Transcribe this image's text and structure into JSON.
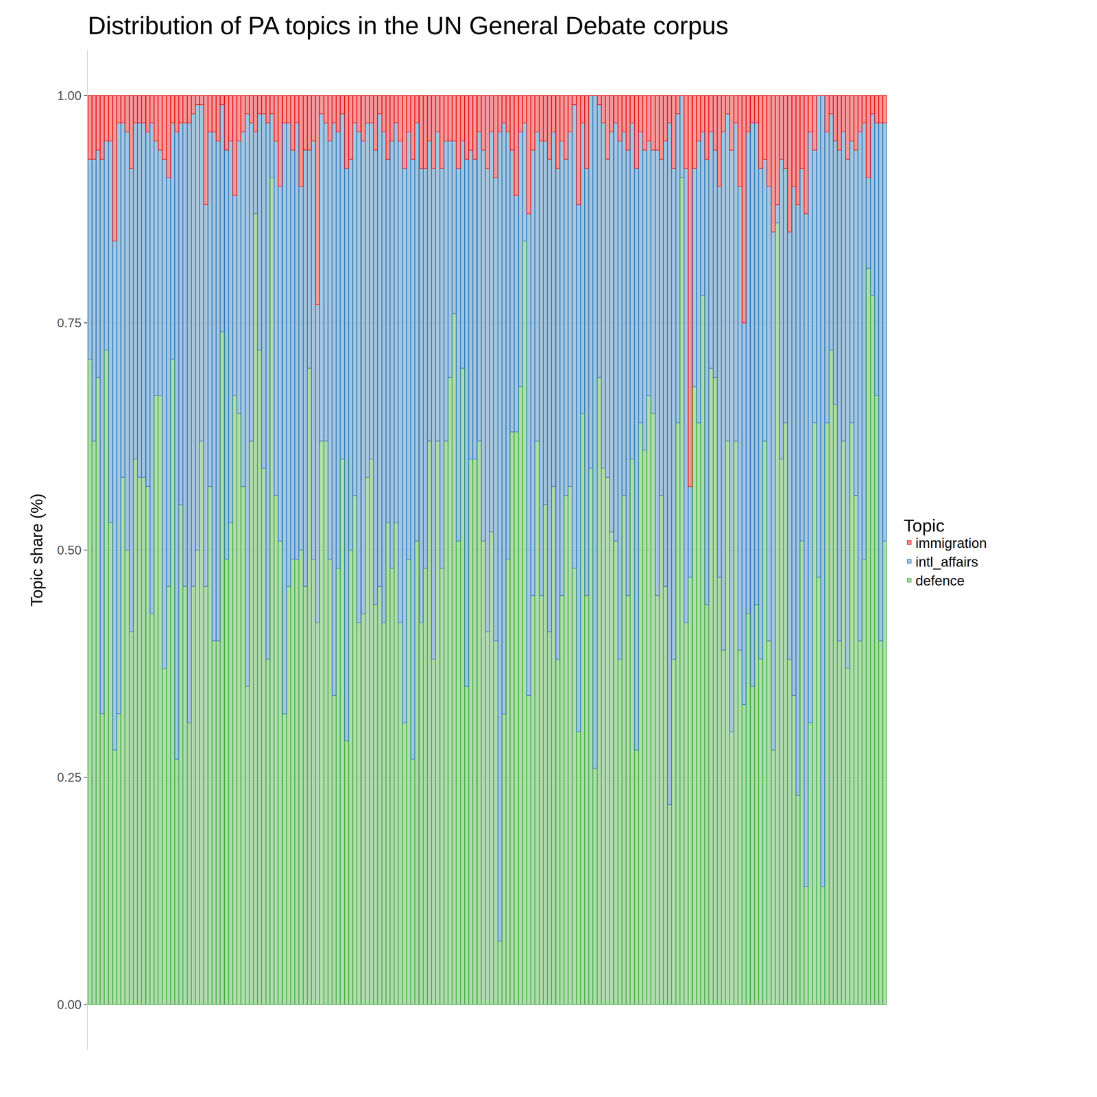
{
  "chart_data": {
    "type": "bar",
    "title": "Distribution of PA topics in the UN General Debate corpus",
    "y_label": "Topic share (%)",
    "legend_title": "Topic",
    "stacked": true,
    "grid": true,
    "tick_labels": "y",
    "legend": "right",
    "ylim": [
      -0.05,
      1.05
    ],
    "yticks": [
      {
        "value": 0,
        "label": "0.00"
      },
      {
        "value": 0.25,
        "label": "0.25"
      },
      {
        "value": 0.5,
        "label": "0.50"
      },
      {
        "value": 0.75,
        "label": "0.75"
      },
      {
        "value": 1,
        "label": "1.00"
      }
    ],
    "categories": [
      null,
      null,
      null,
      null,
      null,
      null,
      null,
      null,
      null,
      null,
      null,
      null,
      null,
      null,
      null,
      null,
      null,
      null,
      null,
      null,
      null,
      null,
      null,
      null,
      null,
      null,
      null,
      null,
      null,
      null,
      null,
      null,
      null,
      null,
      null,
      null,
      null,
      null,
      null,
      null,
      null,
      null,
      null,
      null,
      null,
      null,
      null,
      null,
      null,
      null,
      null,
      null,
      null,
      null,
      null,
      null,
      null,
      null,
      null,
      null,
      null,
      null,
      null,
      null,
      null,
      null,
      null,
      null,
      null,
      null,
      null,
      null,
      null,
      null,
      null,
      null,
      null,
      null,
      null,
      null,
      null,
      null,
      null,
      null,
      null,
      null,
      null,
      null,
      null,
      null,
      null,
      null,
      null,
      null,
      null,
      null,
      null,
      null,
      null,
      null,
      null,
      null,
      null,
      null,
      null,
      null,
      null,
      null,
      null,
      null,
      null,
      null,
      null,
      null,
      null,
      null,
      null,
      null,
      null,
      null,
      null,
      null,
      null,
      null,
      null,
      null,
      null,
      null,
      null,
      null,
      null,
      null,
      null,
      null,
      null,
      null,
      null,
      null,
      null,
      null,
      null,
      null,
      null,
      null,
      null,
      null,
      null,
      null,
      null,
      null,
      null,
      null,
      null,
      null,
      null,
      null,
      null,
      null,
      null,
      null,
      null,
      null,
      null,
      null,
      null,
      null,
      null,
      null,
      null,
      null,
      null,
      null,
      null,
      null,
      null,
      null,
      null,
      null,
      null,
      null,
      null,
      null,
      null,
      null,
      null,
      null,
      null,
      null,
      null,
      null,
      null,
      null,
      null
    ],
    "series": [
      {
        "name": "immigration",
        "color": "#e41a1c",
        "values": [
          0.07,
          0.07,
          0.06,
          0.07,
          0.05,
          0.05,
          0.16,
          0.03,
          0.03,
          0.04,
          0.08,
          0.03,
          0.03,
          0.03,
          0.04,
          0.03,
          0.05,
          0.06,
          0.07,
          0.09,
          0.03,
          0.04,
          0.03,
          0.03,
          0.03,
          0.02,
          0.01,
          0.01,
          0.12,
          0.04,
          0.04,
          0.05,
          0.01,
          0.06,
          0.05,
          0.11,
          0.05,
          0.04,
          0.02,
          0.03,
          0.04,
          0.02,
          0.02,
          0.03,
          0.02,
          0.05,
          0.1,
          0.03,
          0.03,
          0.06,
          0.03,
          0.1,
          0.06,
          0.06,
          0.05,
          0.23,
          0.02,
          0.03,
          0.05,
          0.03,
          0.04,
          0.02,
          0.08,
          0.07,
          0.03,
          0.04,
          0.05,
          0.03,
          0.03,
          0.06,
          0.02,
          0.04,
          0.07,
          0.05,
          0.03,
          0.05,
          0.08,
          0.04,
          0.07,
          0.03,
          0.08,
          0.08,
          0.05,
          0.08,
          0.04,
          0.08,
          0.05,
          0.05,
          0.05,
          0.08,
          0.05,
          0.07,
          0.06,
          0.07,
          0.04,
          0.06,
          0.08,
          0.04,
          0.09,
          0.04,
          0.03,
          0.04,
          0.06,
          0.11,
          0.04,
          0.03,
          0.13,
          0.06,
          0.04,
          0.05,
          0.05,
          0.07,
          0.04,
          0.08,
          0.05,
          0.07,
          0.04,
          0.01,
          0.12,
          0.03,
          0.08,
          0,
          0,
          0.01,
          0.03,
          0.07,
          0.04,
          0.03,
          0.05,
          0.04,
          0.06,
          0.03,
          0.08,
          0.04,
          0.06,
          0.05,
          0.06,
          0.06,
          0.07,
          0.05,
          0.03,
          0.08,
          0.02,
          0,
          0.08,
          0.43,
          0.08,
          0.05,
          0.04,
          0.07,
          0.04,
          0.06,
          0.1,
          0.04,
          0.02,
          0.06,
          0.03,
          0.1,
          0.25,
          0.04,
          0.03,
          0.03,
          0.08,
          0.07,
          0.1,
          0.15,
          0.12,
          0.07,
          0.08,
          0.15,
          0.1,
          0.12,
          0.08,
          0.13,
          0.04,
          0.06,
          0,
          0,
          0.04,
          0.02,
          0.05,
          0.06,
          0.04,
          0.07,
          0.05,
          0.06,
          0.04,
          0.03,
          0.09,
          0.02,
          0.03,
          0.03,
          0.03
        ]
      },
      {
        "name": "intl_affairs",
        "color": "#377eb8",
        "values": [
          0.22,
          0.31,
          0.25,
          0.61,
          0.23,
          0.42,
          0.56,
          0.65,
          0.39,
          0.46,
          0.51,
          0.37,
          0.39,
          0.39,
          0.39,
          0.54,
          0.28,
          0.27,
          0.56,
          0.45,
          0.26,
          0.69,
          0.42,
          0.51,
          0.66,
          0.52,
          0.49,
          0.37,
          0.42,
          0.39,
          0.56,
          0.55,
          0.25,
          0.45,
          0.42,
          0.22,
          0.3,
          0.39,
          0.63,
          0.35,
          0.09,
          0.26,
          0.39,
          0.59,
          0.07,
          0.39,
          0.39,
          0.65,
          0.51,
          0.45,
          0.48,
          0.4,
          0.48,
          0.24,
          0.46,
          0.35,
          0.36,
          0.35,
          0.46,
          0.63,
          0.48,
          0.38,
          0.63,
          0.43,
          0.41,
          0.54,
          0.52,
          0.39,
          0.37,
          0.5,
          0.52,
          0.54,
          0.4,
          0.47,
          0.44,
          0.53,
          0.61,
          0.47,
          0.66,
          0.46,
          0.5,
          0.44,
          0.33,
          0.54,
          0.34,
          0.44,
          0.33,
          0.26,
          0.19,
          0.41,
          0.25,
          0.58,
          0.34,
          0.33,
          0.34,
          0.43,
          0.51,
          0.44,
          0.51,
          0.89,
          0.65,
          0.47,
          0.31,
          0.26,
          0.28,
          0.13,
          0.53,
          0.49,
          0.34,
          0.5,
          0.4,
          0.52,
          0.39,
          0.54,
          0.5,
          0.37,
          0.39,
          0.51,
          0.58,
          0.32,
          0.47,
          0.41,
          0.74,
          0.3,
          0.38,
          0.35,
          0.44,
          0.46,
          0.57,
          0.4,
          0.49,
          0.37,
          0.64,
          0.32,
          0.33,
          0.28,
          0.29,
          0.49,
          0.37,
          0.49,
          0.75,
          0.54,
          0.34,
          0.09,
          0.5,
          0.1,
          0.24,
          0.31,
          0.18,
          0.49,
          0.26,
          0.25,
          0.43,
          0.57,
          0.36,
          0.64,
          0.35,
          0.51,
          0.42,
          0.53,
          0.62,
          0.53,
          0.54,
          0.31,
          0.5,
          0.57,
          0.02,
          0.33,
          0.28,
          0.47,
          0.56,
          0.65,
          0.41,
          0.74,
          0.65,
          0.3,
          0.53,
          0.87,
          0.32,
          0.26,
          0.29,
          0.54,
          0.34,
          0.56,
          0.31,
          0.38,
          0.56,
          0.48,
          0.1,
          0.2,
          0.3,
          0.57,
          0.46
        ]
      },
      {
        "name": "defence",
        "color": "#4daf4a",
        "values": [
          0.71,
          0.62,
          0.69,
          0.32,
          0.72,
          0.53,
          0.28,
          0.32,
          0.58,
          0.5,
          0.41,
          0.6,
          0.58,
          0.58,
          0.57,
          0.43,
          0.67,
          0.67,
          0.37,
          0.46,
          0.71,
          0.27,
          0.55,
          0.46,
          0.31,
          0.46,
          0.5,
          0.62,
          0.46,
          0.57,
          0.4,
          0.4,
          0.74,
          0.49,
          0.53,
          0.67,
          0.65,
          0.57,
          0.35,
          0.62,
          0.87,
          0.72,
          0.59,
          0.38,
          0.91,
          0.56,
          0.51,
          0.32,
          0.46,
          0.49,
          0.49,
          0.5,
          0.46,
          0.7,
          0.49,
          0.42,
          0.62,
          0.62,
          0.49,
          0.34,
          0.48,
          0.6,
          0.29,
          0.5,
          0.56,
          0.42,
          0.43,
          0.58,
          0.6,
          0.44,
          0.46,
          0.42,
          0.53,
          0.48,
          0.53,
          0.42,
          0.31,
          0.49,
          0.27,
          0.51,
          0.42,
          0.48,
          0.62,
          0.38,
          0.62,
          0.48,
          0.62,
          0.69,
          0.76,
          0.51,
          0.7,
          0.35,
          0.6,
          0.6,
          0.62,
          0.51,
          0.41,
          0.52,
          0.4,
          0.07,
          0.32,
          0.49,
          0.63,
          0.63,
          0.68,
          0.84,
          0.34,
          0.45,
          0.62,
          0.45,
          0.55,
          0.41,
          0.57,
          0.38,
          0.45,
          0.56,
          0.57,
          0.48,
          0.3,
          0.65,
          0.45,
          0.59,
          0.26,
          0.69,
          0.59,
          0.58,
          0.52,
          0.51,
          0.38,
          0.56,
          0.45,
          0.6,
          0.28,
          0.64,
          0.61,
          0.67,
          0.65,
          0.45,
          0.56,
          0.46,
          0.22,
          0.38,
          0.64,
          0.91,
          0.42,
          0.47,
          0.68,
          0.64,
          0.78,
          0.44,
          0.7,
          0.69,
          0.47,
          0.39,
          0.62,
          0.3,
          0.62,
          0.39,
          0.33,
          0.43,
          0.35,
          0.44,
          0.38,
          0.62,
          0.4,
          0.28,
          0.86,
          0.6,
          0.64,
          0.38,
          0.34,
          0.23,
          0.51,
          0.13,
          0.31,
          0.64,
          0.47,
          0.13,
          0.64,
          0.72,
          0.66,
          0.4,
          0.62,
          0.37,
          0.64,
          0.56,
          0.4,
          0.49,
          0.81,
          0.78,
          0.67,
          0.4,
          0.51
        ]
      }
    ]
  }
}
